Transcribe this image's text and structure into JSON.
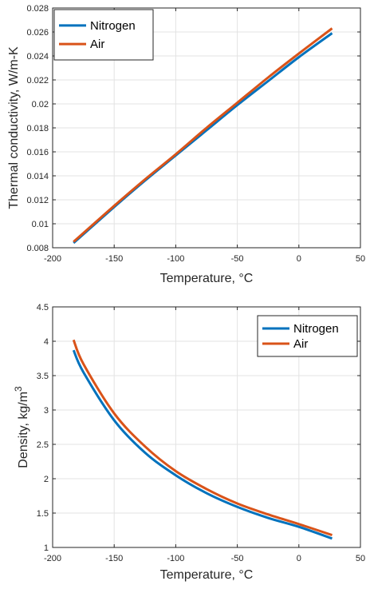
{
  "chart_data": [
    {
      "type": "line",
      "title": "",
      "xlabel": "Temperature, °C",
      "ylabel": "Thermal conductivity, W/m-K",
      "xlim": [
        -200,
        50
      ],
      "ylim": [
        0.008,
        0.028
      ],
      "xticks": [
        -200,
        -150,
        -100,
        -50,
        0,
        50
      ],
      "xtick_labels": [
        "-200",
        "-150",
        "-100",
        "-50",
        "0",
        "50"
      ],
      "yticks": [
        0.008,
        0.01,
        0.012,
        0.014,
        0.016,
        0.018,
        0.02,
        0.022,
        0.024,
        0.026,
        0.028
      ],
      "ytick_labels": [
        "0.008",
        "0.01",
        "0.012",
        "0.014",
        "0.016",
        "0.018",
        "0.02",
        "0.022",
        "0.024",
        "0.026",
        "0.028"
      ],
      "grid": true,
      "legend_position": "top-left",
      "series": [
        {
          "name": "Nitrogen",
          "color": "#0072BD",
          "x": [
            -183,
            -150,
            -125,
            -100,
            -75,
            -50,
            -25,
            0,
            27
          ],
          "y": [
            0.0084,
            0.0114,
            0.0136,
            0.0157,
            0.0178,
            0.0199,
            0.0219,
            0.0239,
            0.0259
          ]
        },
        {
          "name": "Air",
          "color": "#D95319",
          "x": [
            -183,
            -150,
            -125,
            -100,
            -75,
            -50,
            -25,
            0,
            27
          ],
          "y": [
            0.0085,
            0.0115,
            0.0137,
            0.0158,
            0.018,
            0.0201,
            0.0222,
            0.0242,
            0.0263
          ]
        }
      ]
    },
    {
      "type": "line",
      "title": "",
      "xlabel": "Temperature, °C",
      "ylabel": "Density, kg/m",
      "ylabel_superscript": "3",
      "xlim": [
        -200,
        50
      ],
      "ylim": [
        1,
        4.5
      ],
      "xticks": [
        -200,
        -150,
        -100,
        -50,
        0,
        50
      ],
      "xtick_labels": [
        "-200",
        "-150",
        "-100",
        "-50",
        "0",
        "50"
      ],
      "yticks": [
        1,
        1.5,
        2,
        2.5,
        3,
        3.5,
        4,
        4.5
      ],
      "ytick_labels": [
        "1",
        "1.5",
        "2",
        "2.5",
        "3",
        "3.5",
        "4",
        "4.5"
      ],
      "grid": true,
      "legend_position": "top-right",
      "series": [
        {
          "name": "Nitrogen",
          "color": "#0072BD",
          "x": [
            -183,
            -175,
            -150,
            -125,
            -100,
            -75,
            -50,
            -25,
            0,
            27
          ],
          "y": [
            3.87,
            3.55,
            2.85,
            2.38,
            2.05,
            1.79,
            1.59,
            1.43,
            1.3,
            1.13
          ]
        },
        {
          "name": "Air",
          "color": "#D95319",
          "x": [
            -183,
            -175,
            -150,
            -125,
            -100,
            -75,
            -50,
            -25,
            0,
            27
          ],
          "y": [
            4.02,
            3.67,
            2.95,
            2.47,
            2.11,
            1.85,
            1.64,
            1.48,
            1.34,
            1.18
          ]
        }
      ]
    }
  ]
}
